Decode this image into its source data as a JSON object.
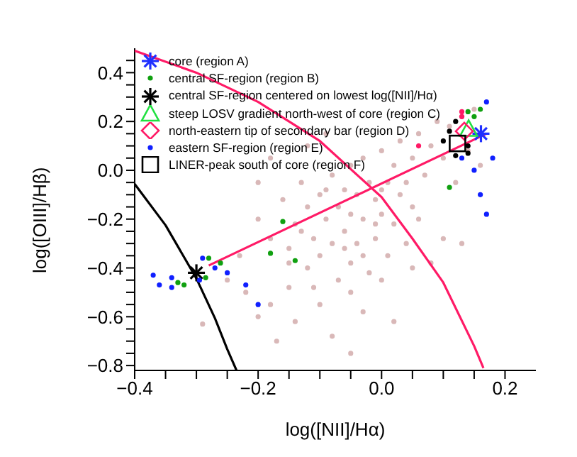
{
  "chart_data": {
    "type": "scatter",
    "xlabel": "log([NII]/Hα)",
    "ylabel": "log([OIII]/Hβ)",
    "xlim": [
      -0.4,
      0.25
    ],
    "ylim": [
      -0.82,
      0.5
    ],
    "xticks": [
      {
        "value": -0.4,
        "label": "−0.4"
      },
      {
        "value": -0.35,
        "label": null
      },
      {
        "value": -0.3,
        "label": null
      },
      {
        "value": -0.25,
        "label": null
      },
      {
        "value": -0.2,
        "label": "−0.2"
      },
      {
        "value": -0.15,
        "label": null
      },
      {
        "value": -0.1,
        "label": null
      },
      {
        "value": -0.05,
        "label": null
      },
      {
        "value": 0,
        "label": "0.0"
      },
      {
        "value": 0.05,
        "label": null
      },
      {
        "value": 0.1,
        "label": null
      },
      {
        "value": 0.15,
        "label": null
      },
      {
        "value": 0.2,
        "label": "0.2"
      }
    ],
    "yticks": [
      {
        "value": -0.8,
        "label": "−0.8"
      },
      {
        "value": -0.75,
        "label": null
      },
      {
        "value": -0.7,
        "label": null
      },
      {
        "value": -0.65,
        "label": null
      },
      {
        "value": -0.6,
        "label": "−0.6"
      },
      {
        "value": -0.55,
        "label": null
      },
      {
        "value": -0.5,
        "label": null
      },
      {
        "value": -0.45,
        "label": null
      },
      {
        "value": -0.4,
        "label": "−0.4"
      },
      {
        "value": -0.35,
        "label": null
      },
      {
        "value": -0.3,
        "label": null
      },
      {
        "value": -0.25,
        "label": null
      },
      {
        "value": -0.2,
        "label": "−0.2"
      },
      {
        "value": -0.15,
        "label": null
      },
      {
        "value": -0.1,
        "label": null
      },
      {
        "value": -0.05,
        "label": null
      },
      {
        "value": 0,
        "label": "0.0"
      },
      {
        "value": 0.05,
        "label": null
      },
      {
        "value": 0.1,
        "label": null
      },
      {
        "value": 0.15,
        "label": null
      },
      {
        "value": 0.2,
        "label": "0.2"
      },
      {
        "value": 0.25,
        "label": null
      },
      {
        "value": 0.3,
        "label": null
      },
      {
        "value": 0.35,
        "label": null
      },
      {
        "value": 0.4,
        "label": "0.4"
      },
      {
        "value": 0.45,
        "label": null
      }
    ],
    "legend": "top left",
    "series": [
      {
        "color": "#d9b8b8",
        "marker": "circle",
        "x": [
          -0.2,
          -0.18,
          -0.16,
          -0.15,
          -0.14,
          -0.13,
          -0.12,
          -0.12,
          -0.11,
          -0.1,
          -0.1,
          -0.09,
          -0.08,
          -0.08,
          -0.07,
          -0.07,
          -0.06,
          -0.06,
          -0.05,
          -0.05,
          -0.05,
          -0.04,
          -0.04,
          -0.03,
          -0.03,
          -0.02,
          -0.02,
          -0.01,
          -0.01,
          0,
          0,
          0.01,
          0.01,
          0.02,
          0.02,
          0.03,
          0.03,
          0.04,
          0.05,
          0.05,
          0.06,
          0.07,
          0.08,
          0.09,
          0.1,
          0.11,
          0.12,
          0.13,
          0.14,
          0.15,
          0.16,
          -0.25,
          -0.22,
          -0.2,
          -0.18,
          -0.15,
          -0.14,
          -0.1,
          -0.08,
          -0.05,
          -0.03,
          0,
          0.02,
          0.05,
          0.08,
          0.1,
          0.13,
          -0.29,
          -0.17,
          -0.05,
          -0.23,
          -0.2,
          -0.18,
          -0.12,
          -0.09,
          -0.15,
          -0.11,
          -0.13,
          -0.06,
          -0.01,
          0.04,
          0.06,
          -0.09,
          -0.03,
          0.0
        ],
        "values": [
          -0.2,
          -0.28,
          -0.12,
          -0.32,
          -0.22,
          -0.05,
          -0.4,
          -0.15,
          -0.28,
          -0.1,
          -0.35,
          -0.2,
          -0.02,
          -0.3,
          -0.15,
          -0.45,
          -0.08,
          -0.25,
          0.02,
          -0.18,
          -0.38,
          -0.1,
          -0.3,
          0.05,
          -0.2,
          -0.05,
          -0.42,
          -0.12,
          -0.28,
          0.08,
          -0.18,
          -0.05,
          -0.35,
          0.02,
          -0.22,
          -0.1,
          0.12,
          -0.3,
          0.05,
          -0.15,
          0.15,
          -0.02,
          0.1,
          0.2,
          0.05,
          0.18,
          -0.05,
          0.22,
          0.08,
          0.25,
          0.02,
          -0.45,
          -0.5,
          -0.6,
          -0.55,
          -0.48,
          -0.62,
          -0.55,
          -0.68,
          -0.5,
          -0.58,
          -0.45,
          -0.62,
          -0.4,
          -0.38,
          -0.28,
          -0.3,
          -0.63,
          -0.7,
          -0.75,
          -0.35,
          -0.05,
          0.05,
          0.1,
          0.15,
          -0.38,
          -0.48,
          -0.25,
          -0.32,
          -0.22,
          -0.05,
          -0.2,
          -0.08,
          -0.35,
          -0.08
        ]
      },
      {
        "type": "line",
        "color": "#000000",
        "marker": "none",
        "x": [
          -0.4,
          -0.35,
          -0.3,
          -0.27,
          -0.25,
          -0.235
        ],
        "values": [
          -0.056,
          -0.225,
          -0.443,
          -0.606,
          -0.733,
          -0.82
        ]
      },
      {
        "type": "line",
        "color": "#ff1a66",
        "marker": "none",
        "x": [
          -0.4,
          -0.3,
          -0.2,
          -0.1,
          0,
          0.05,
          0.1,
          0.15,
          0.165
        ],
        "values": [
          0.49,
          0.4,
          0.28,
          0.12,
          -0.11,
          -0.28,
          -0.46,
          -0.72,
          -0.81
        ]
      },
      {
        "type": "line",
        "color": "#ff1a66",
        "marker": "none",
        "x": [
          -0.28,
          0.17
        ],
        "values": [
          -0.39,
          0.15
        ]
      },
      {
        "color": "#000000",
        "marker": "circle",
        "x": [
          0.11,
          0.1,
          0.14,
          0.14,
          0.12,
          0.12
        ],
        "values": [
          0.16,
          0.12,
          0.1,
          0.07,
          0.2,
          0.06
        ]
      },
      {
        "color": "#ff1a66",
        "marker": "circle",
        "x": [
          0.06,
          0.13,
          0.13
        ],
        "values": [
          0.1,
          0.24,
          0.22
        ]
      },
      {
        "name": "core (region A)",
        "color": "#2030ff",
        "marker": "cross",
        "x": [
          0.161
        ],
        "values": [
          0.15
        ]
      },
      {
        "name": "central SF-region (region B)",
        "color": "#10a010",
        "marker": "circle",
        "x": [
          -0.261,
          -0.33,
          -0.32,
          -0.28,
          -0.18,
          -0.14,
          -0.16,
          -0.285,
          0.14,
          0.15,
          0.16,
          0.11
        ],
        "values": [
          -0.38,
          -0.46,
          -0.47,
          -0.36,
          -0.34,
          -0.37,
          -0.21,
          -0.44,
          0.24,
          0.22,
          0.25,
          -0.07
        ]
      },
      {
        "name": "central SF-region centered on lowest log([NII]/Hα)",
        "color": "#000000",
        "marker": "cross",
        "x": [
          -0.3
        ],
        "values": [
          -0.42
        ]
      },
      {
        "name": "steep LOSV gradient north-west of core (region C)",
        "color": "#20e040",
        "marker": "triangle",
        "x": [
          0.141
        ],
        "values": [
          0.17
        ]
      },
      {
        "name": "north-eastern tip of secondary bar (region D)",
        "color": "#ff1a66",
        "marker": "diamond",
        "x": [
          0.134
        ],
        "values": [
          0.16
        ]
      },
      {
        "name": "eastern SF-region (region E)",
        "color": "#1020ff",
        "marker": "circle",
        "x": [
          -0.295,
          -0.37,
          -0.36,
          -0.34,
          -0.34,
          -0.29,
          -0.27,
          -0.25,
          -0.22,
          -0.2,
          0.15,
          0.17,
          0.18,
          0.16,
          0.17,
          0.13
        ],
        "values": [
          -0.45,
          -0.43,
          -0.47,
          -0.44,
          -0.48,
          -0.36,
          -0.4,
          -0.42,
          -0.47,
          -0.55,
          0.0,
          0.28,
          0.05,
          -0.1,
          -0.18,
          0.05
        ]
      },
      {
        "name": "LINER-peak south of core (region F)",
        "color": "#000000",
        "marker": "square",
        "x": [
          0.123
        ],
        "values": [
          0.11
        ]
      }
    ]
  }
}
